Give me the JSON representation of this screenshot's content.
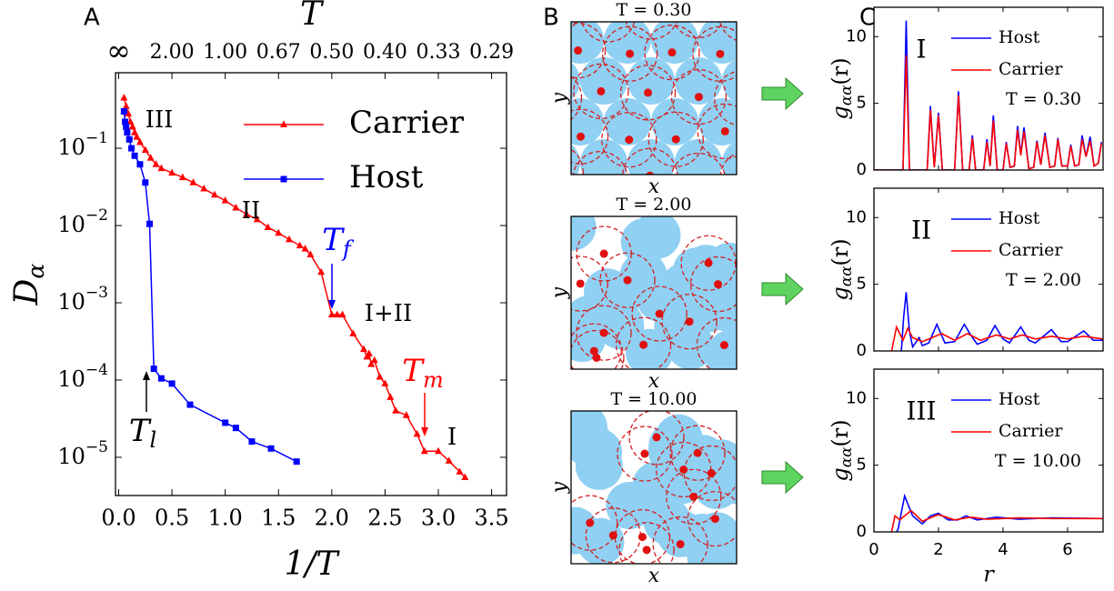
{
  "panel_labels": [
    "A",
    "B",
    "C"
  ],
  "chart_data": [
    {
      "type": "line",
      "log_y": true,
      "x2label": "T",
      "xlabel": "1/T",
      "ylabel": "D",
      "ylabel_sub": "α",
      "xlim": [
        -0.03,
        3.64
      ],
      "ylim": [
        3.2e-06,
        0.95
      ],
      "xticks": [
        {
          "value": 0,
          "label": "0.0"
        },
        0.5,
        {
          "value": 1,
          "label": "1.0"
        },
        1.5,
        {
          "value": 2,
          "label": "2.0"
        },
        2.5,
        {
          "value": 3,
          "label": "3.0"
        },
        3.5
      ],
      "x2ticks": [
        {
          "value": 0,
          "label": "∞"
        },
        {
          "value": 0.5,
          "label": "2.00"
        },
        {
          "value": 1,
          "label": "1.00"
        },
        {
          "value": 1.5,
          "label": "0.67"
        },
        {
          "value": 2,
          "label": "0.50"
        },
        {
          "value": 2.5,
          "label": "0.40"
        },
        {
          "value": 3,
          "label": "0.33"
        },
        {
          "value": 3.5,
          "label": "0.29"
        }
      ],
      "yticks": [
        {
          "value": 1e-05,
          "label": "10",
          "exponent": "−5"
        },
        {
          "value": 0.0001,
          "label": "10",
          "exponent": "−4"
        },
        {
          "value": 0.001,
          "label": "10",
          "exponent": "−3"
        },
        {
          "value": 0.01,
          "label": "10",
          "exponent": "−2"
        },
        {
          "value": 0.1,
          "label": "10",
          "exponent": "−1"
        }
      ],
      "legend": "upper right",
      "series": [
        {
          "name": "Carrier",
          "color": "red",
          "marker": "triangle",
          "x": [
            0.05,
            0.07,
            0.09,
            0.11,
            0.13,
            0.15,
            0.17,
            0.2,
            0.25,
            0.3,
            0.35,
            0.4,
            0.5,
            0.6,
            0.7,
            0.8,
            0.9,
            1.0,
            1.1,
            1.2,
            1.3,
            1.4,
            1.5,
            1.6,
            1.7,
            1.75,
            1.8,
            1.9,
            2.0,
            2.05,
            2.1,
            2.2,
            2.3,
            2.33,
            2.35,
            2.37,
            2.4,
            2.45,
            2.5,
            2.55,
            2.6,
            2.7,
            2.8,
            2.87,
            3.0,
            3.1,
            3.2,
            3.25
          ],
          "values": [
            0.45,
            0.35,
            0.28,
            0.22,
            0.19,
            0.16,
            0.14,
            0.12,
            0.095,
            0.075,
            0.062,
            0.055,
            0.048,
            0.042,
            0.036,
            0.03,
            0.025,
            0.021,
            0.017,
            0.014,
            0.012,
            0.0095,
            0.008,
            0.0066,
            0.0055,
            0.005,
            0.0042,
            0.0025,
            0.0007,
            0.0007,
            0.0007,
            0.0004,
            0.00025,
            0.0002,
            0.00022,
            0.00016,
            0.00018,
            0.00011,
            9e-05,
            6e-05,
            4e-05,
            3.5e-05,
            2e-05,
            1.2e-05,
            1.2e-05,
            9e-06,
            6.5e-06,
            5.5e-06
          ]
        },
        {
          "name": "Host",
          "color": "blue",
          "marker": "square",
          "x": [
            0.05,
            0.06,
            0.07,
            0.08,
            0.1,
            0.12,
            0.15,
            0.2,
            0.25,
            0.29,
            0.33,
            0.4,
            0.5,
            0.67,
            1.0,
            1.1,
            1.25,
            1.43,
            1.67
          ],
          "values": [
            0.3,
            0.22,
            0.19,
            0.16,
            0.13,
            0.1,
            0.08,
            0.062,
            0.036,
            0.0105,
            0.00014,
            0.000105,
            9e-05,
            4.8e-05,
            2.8e-05,
            2.4e-05,
            1.6e-05,
            1.3e-05,
            8.8e-06
          ]
        }
      ],
      "annotations": [
        {
          "text": "III"
        },
        {
          "text": "II"
        },
        {
          "text": "I+II"
        },
        {
          "text": "I"
        },
        {
          "text": "T",
          "sub": "f",
          "color": "blue"
        },
        {
          "text": "T",
          "sub": "m",
          "color": "red"
        },
        {
          "text": "T",
          "sub": "l",
          "color": "black"
        }
      ]
    },
    {
      "type": "snapshot",
      "title": "T = 0.30",
      "xlabel": "x",
      "ylabel": "y"
    },
    {
      "type": "snapshot",
      "title": "T = 2.00",
      "xlabel": "x",
      "ylabel": "y"
    },
    {
      "type": "snapshot",
      "title": "T = 10.00",
      "xlabel": "x",
      "ylabel": "y"
    },
    {
      "type": "line",
      "phase": "I",
      "annotation": "T = 0.30",
      "ylabel": "g",
      "ylabel_sub": "αα",
      "ylabel_tail": "(r)",
      "xlim": [
        0,
        7.1
      ],
      "ylim": [
        0,
        12.2
      ],
      "xticks": [
        0,
        2,
        4,
        6
      ],
      "yticks": [
        0,
        5,
        10
      ],
      "show_xtick_labels": false,
      "legend": "upper right",
      "series": [
        {
          "name": "Host",
          "color": "blue",
          "x": [
            0,
            0.9,
            1.0,
            1.1,
            1.65,
            1.75,
            1.87,
            2.0,
            2.12,
            2.5,
            2.62,
            2.75,
            2.95,
            3.05,
            3.15,
            3.4,
            3.5,
            3.6,
            3.7,
            3.82,
            4.0,
            4.1,
            4.22,
            4.35,
            4.45,
            4.55,
            4.65,
            4.8,
            4.95,
            5.05,
            5.17,
            5.3,
            5.45,
            5.6,
            5.7,
            5.82,
            6.0,
            6.1,
            6.22,
            6.35,
            6.45,
            6.57,
            6.7,
            6.82,
            6.95,
            7.05
          ],
          "values": [
            0,
            0,
            11.2,
            0,
            0,
            4.8,
            0.2,
            4.3,
            0,
            0,
            5.9,
            0,
            0,
            2.6,
            0,
            0,
            2.3,
            0.3,
            4.1,
            0,
            0,
            2.1,
            0.2,
            0.3,
            3.3,
            1.2,
            3.2,
            0.1,
            0.2,
            2.2,
            0.4,
            2.8,
            0.2,
            0.3,
            2.4,
            0.3,
            0.3,
            1.9,
            0.3,
            0.4,
            2.6,
            1.0,
            2.5,
            0.3,
            0.5,
            2.1
          ]
        },
        {
          "name": "Carrier",
          "color": "red",
          "x": [
            0,
            0.9,
            1.0,
            1.1,
            1.65,
            1.75,
            1.87,
            2.0,
            2.12,
            2.5,
            2.62,
            2.75,
            2.95,
            3.05,
            3.15,
            3.4,
            3.5,
            3.6,
            3.7,
            3.82,
            4.0,
            4.1,
            4.22,
            4.35,
            4.45,
            4.55,
            4.65,
            4.8,
            4.95,
            5.05,
            5.17,
            5.3,
            5.45,
            5.6,
            5.7,
            5.82,
            6.0,
            6.1,
            6.22,
            6.35,
            6.45,
            6.57,
            6.7,
            6.82,
            6.95,
            7.05
          ],
          "values": [
            0,
            0,
            8.6,
            0,
            0,
            4.5,
            0.2,
            4.1,
            0,
            0,
            5.6,
            0,
            0,
            2.4,
            0,
            0,
            2.1,
            0.3,
            3.7,
            0,
            0,
            2.0,
            0.2,
            0.3,
            3.0,
            1.1,
            2.9,
            0.1,
            0.2,
            2.1,
            0.4,
            2.6,
            0.2,
            0.3,
            2.3,
            0.3,
            0.3,
            1.8,
            0.3,
            0.4,
            2.3,
            1.0,
            2.2,
            0.3,
            0.5,
            2.0
          ]
        }
      ]
    },
    {
      "type": "line",
      "phase": "II",
      "annotation": "T = 2.00",
      "ylabel": "g",
      "ylabel_sub": "αα",
      "ylabel_tail": "(r)",
      "xlim": [
        0,
        7.1
      ],
      "ylim": [
        0,
        12.2
      ],
      "xticks": [
        0,
        2,
        4,
        6
      ],
      "yticks": [
        0,
        5,
        10
      ],
      "show_xtick_labels": false,
      "legend": "upper right",
      "series": [
        {
          "name": "Host",
          "color": "blue",
          "x": [
            0.85,
            0.92,
            1.0,
            1.1,
            1.2,
            1.4,
            1.5,
            1.7,
            1.95,
            2.2,
            2.5,
            2.8,
            3.0,
            3.2,
            3.5,
            3.75,
            4.0,
            4.2,
            4.55,
            4.8,
            5.0,
            5.5,
            5.8,
            6.0,
            6.5,
            6.8,
            7.1
          ],
          "values": [
            0,
            2.5,
            4.4,
            1.5,
            0.3,
            1.0,
            0.4,
            0.6,
            2.0,
            0.6,
            0.7,
            2.0,
            1.2,
            0.5,
            0.8,
            1.9,
            0.9,
            0.6,
            1.8,
            0.8,
            0.6,
            1.6,
            0.7,
            0.7,
            1.5,
            0.8,
            0.8
          ]
        },
        {
          "name": "Carrier",
          "color": "red",
          "x": [
            0.5,
            0.55,
            0.7,
            0.9,
            1.05,
            1.2,
            1.5,
            1.8,
            2.1,
            2.5,
            2.9,
            3.3,
            3.8,
            4.2,
            4.6,
            5.0,
            5.5,
            6.0,
            6.5,
            7.1
          ],
          "values": [
            0,
            0,
            1.8,
            0.8,
            1.7,
            1.0,
            0.7,
            1.0,
            1.3,
            0.8,
            1.3,
            0.8,
            1.2,
            0.9,
            1.2,
            0.9,
            1.1,
            0.9,
            1.1,
            0.9
          ]
        }
      ]
    },
    {
      "type": "line",
      "phase": "III",
      "annotation": "T = 10.00",
      "ylabel": "g",
      "ylabel_sub": "αα",
      "ylabel_tail": "(r)",
      "xlabel": "r",
      "xlim": [
        0,
        7.1
      ],
      "ylim": [
        0,
        12.2
      ],
      "xticks": [
        0,
        2,
        4,
        6
      ],
      "yticks": [
        0,
        5,
        10
      ],
      "legend": "upper right",
      "series": [
        {
          "name": "Host",
          "color": "blue",
          "x": [
            0.7,
            0.75,
            0.95,
            1.2,
            1.5,
            1.75,
            2.0,
            2.3,
            2.6,
            2.85,
            3.2,
            3.8,
            4.5,
            5.5,
            7.1
          ],
          "values": [
            0,
            0.2,
            2.7,
            1.2,
            0.6,
            1.2,
            1.4,
            0.9,
            0.9,
            1.2,
            0.9,
            1.1,
            0.95,
            1.05,
            1.0
          ]
        },
        {
          "name": "Carrier",
          "color": "red",
          "x": [
            0.5,
            0.55,
            0.65,
            0.8,
            1.15,
            1.5,
            2.0,
            2.5,
            3.0,
            3.5,
            4.5,
            5.5,
            7.1
          ],
          "values": [
            0,
            0,
            1.2,
            0.9,
            1.6,
            0.8,
            1.3,
            0.9,
            1.1,
            0.95,
            1.05,
            1.0,
            1.0
          ]
        }
      ]
    }
  ]
}
